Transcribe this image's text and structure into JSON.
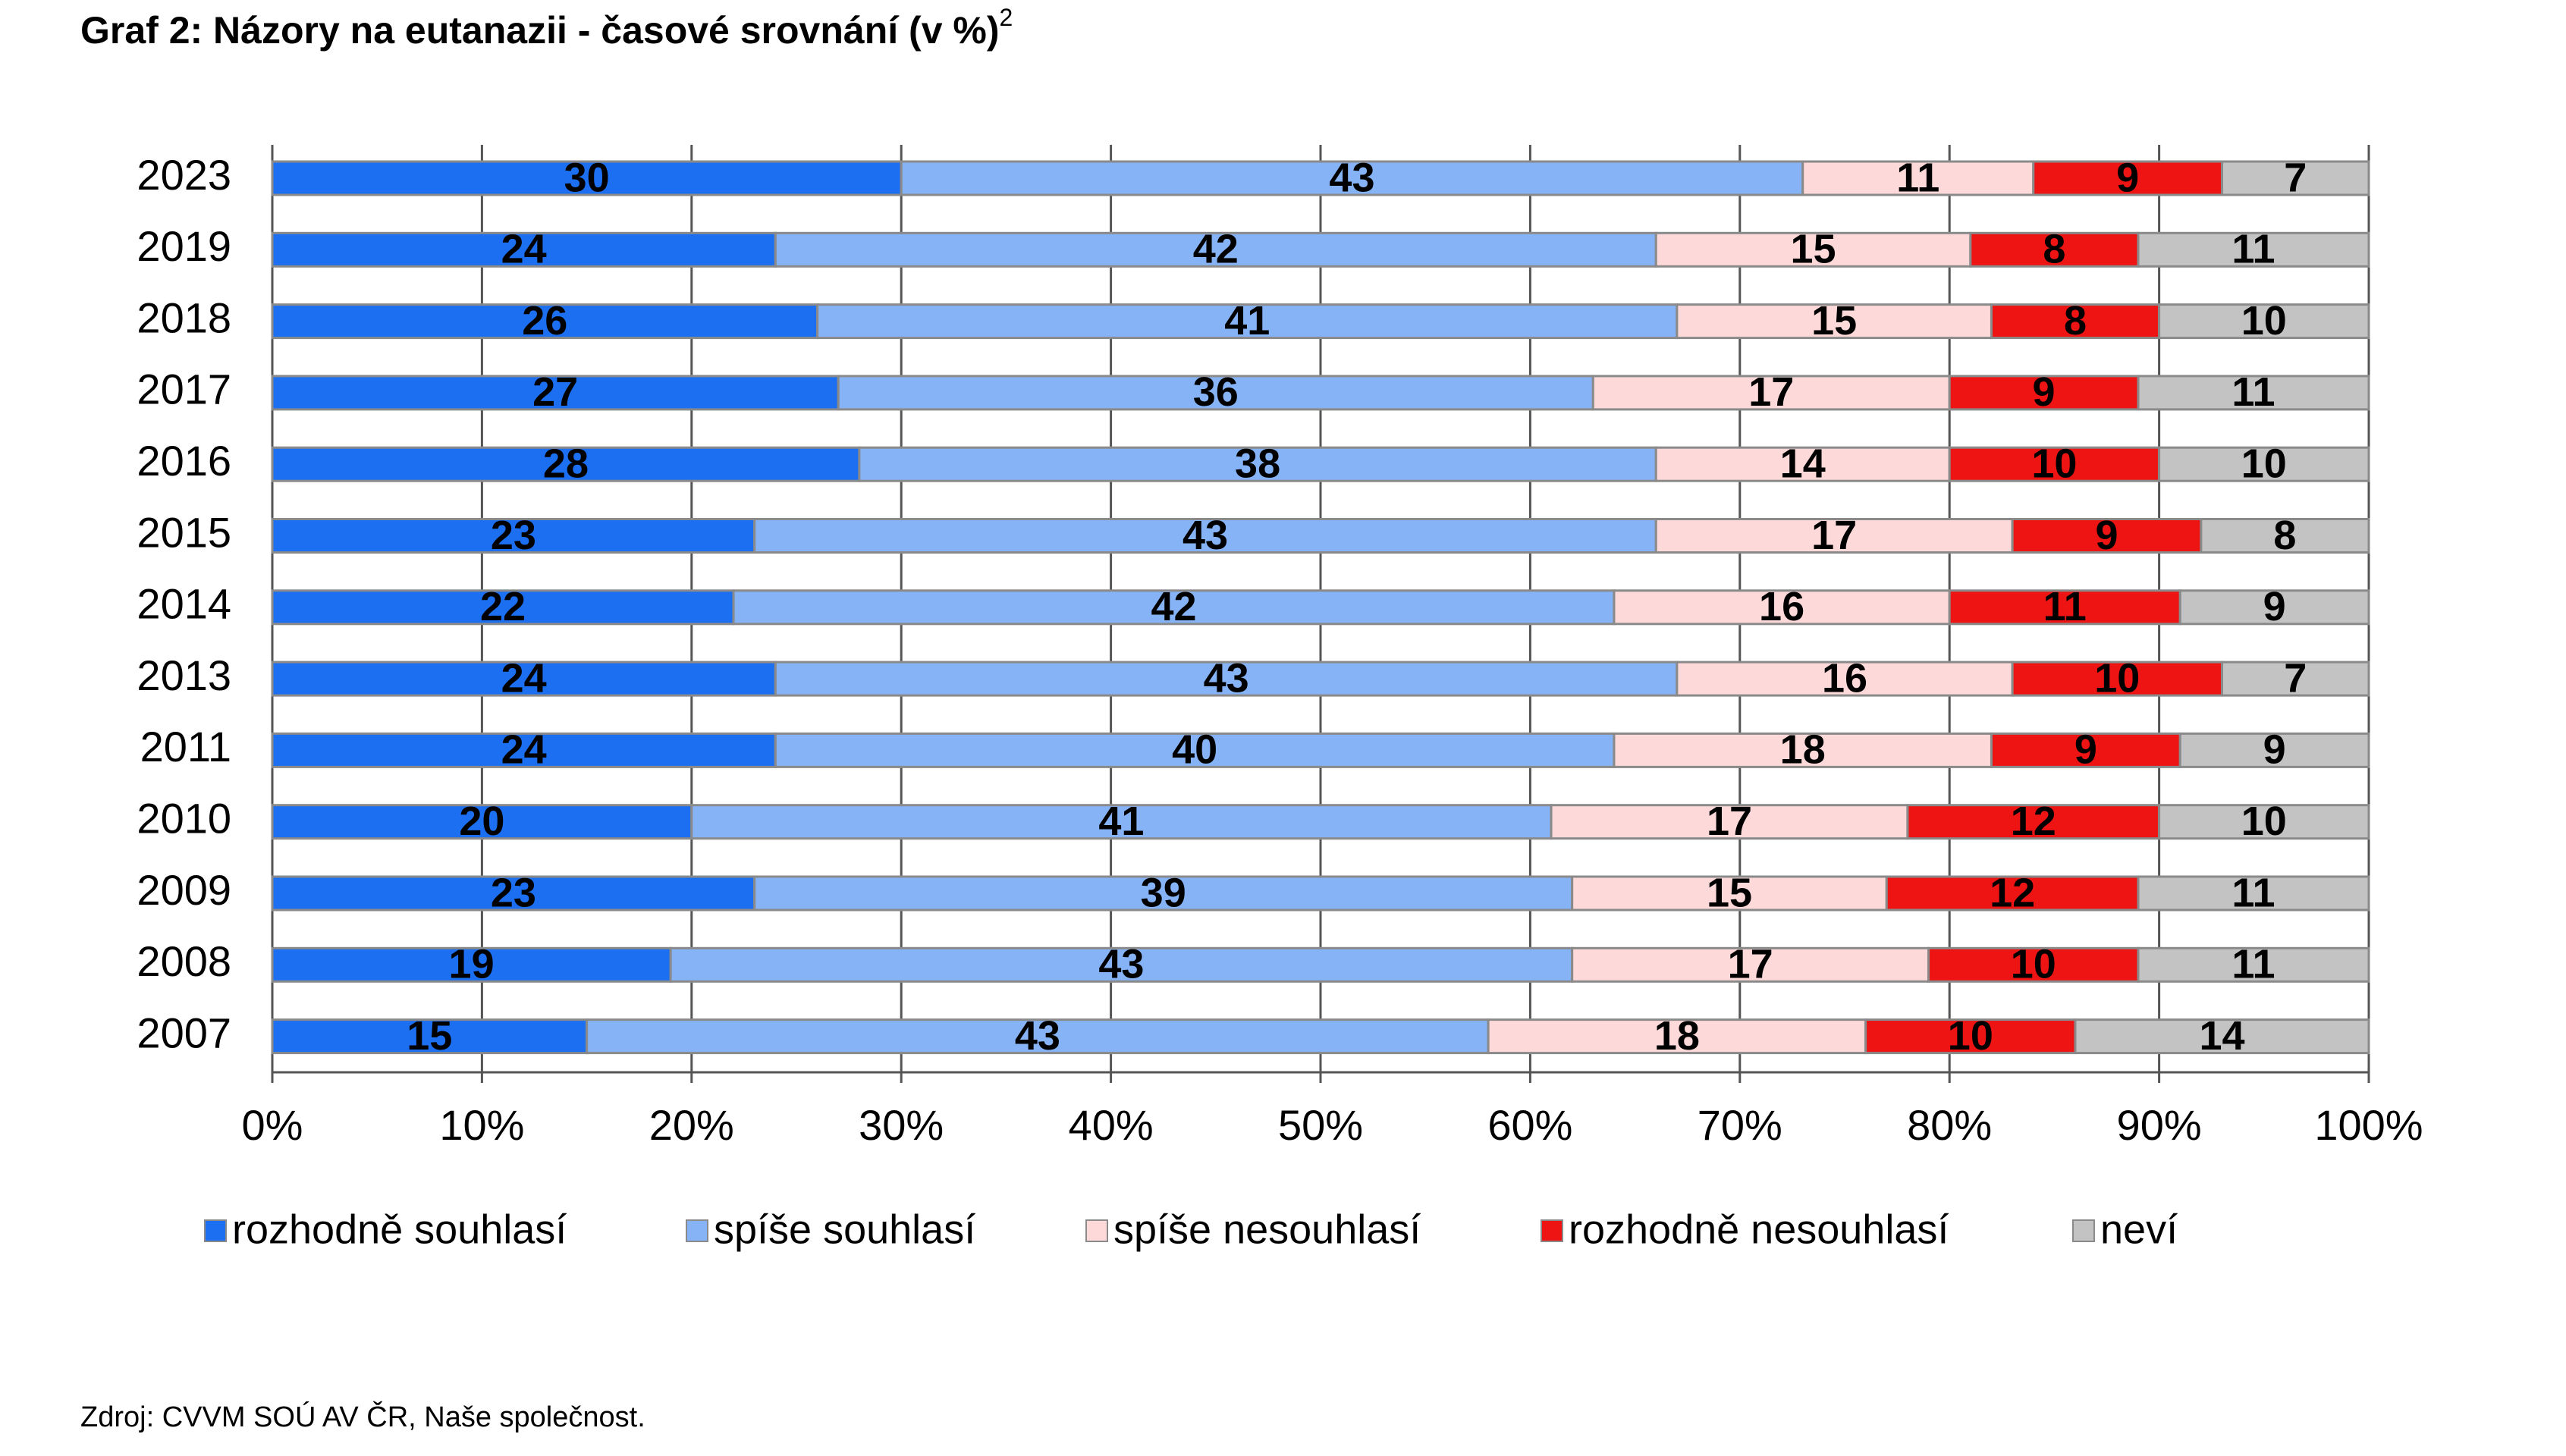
{
  "title": "Graf 2: Názory na eutanazii - časové srovnání (v %)",
  "title_footnote_mark": "2",
  "chart_data": {
    "type": "stacked-bar-horizontal",
    "categories": [
      "2023",
      "2019",
      "2018",
      "2017",
      "2016",
      "2015",
      "2014",
      "2013",
      "2011",
      "2010",
      "2009",
      "2008",
      "2007"
    ],
    "series": [
      {
        "name": "rozhodně souhlasí",
        "color": "#1b6ff0",
        "values": [
          30,
          24,
          26,
          27,
          28,
          23,
          22,
          24,
          24,
          20,
          23,
          19,
          15
        ]
      },
      {
        "name": "spíše souhlasí",
        "color": "#86b3f5",
        "values": [
          43,
          42,
          41,
          36,
          38,
          43,
          42,
          43,
          40,
          41,
          39,
          43,
          43
        ]
      },
      {
        "name": "spíše nesouhlasí",
        "color": "#fdd9d9",
        "values": [
          11,
          15,
          15,
          17,
          14,
          17,
          16,
          16,
          18,
          17,
          15,
          17,
          18
        ]
      },
      {
        "name": "rozhodně nesouhlasí",
        "color": "#ee1414",
        "values": [
          9,
          8,
          8,
          9,
          10,
          9,
          11,
          10,
          9,
          12,
          12,
          10,
          10
        ]
      },
      {
        "name": "neví",
        "color": "#c3c3c3",
        "values": [
          7,
          11,
          10,
          11,
          10,
          8,
          9,
          7,
          9,
          10,
          11,
          11,
          14
        ]
      }
    ],
    "xlim": [
      0,
      100
    ],
    "xticks": [
      {
        "value": 0,
        "label": "0%"
      },
      {
        "value": 10,
        "label": "10%"
      },
      {
        "value": 20,
        "label": "20%"
      },
      {
        "value": 30,
        "label": "30%"
      },
      {
        "value": 40,
        "label": "40%"
      },
      {
        "value": 50,
        "label": "50%"
      },
      {
        "value": 60,
        "label": "60%"
      },
      {
        "value": 70,
        "label": "70%"
      },
      {
        "value": 80,
        "label": "80%"
      },
      {
        "value": 90,
        "label": "90%"
      },
      {
        "value": 100,
        "label": "100%"
      }
    ],
    "grid": true,
    "legend": "bottom"
  },
  "source": "Zdroj: CVVM SOÚ AV ČR, Naše společnost."
}
